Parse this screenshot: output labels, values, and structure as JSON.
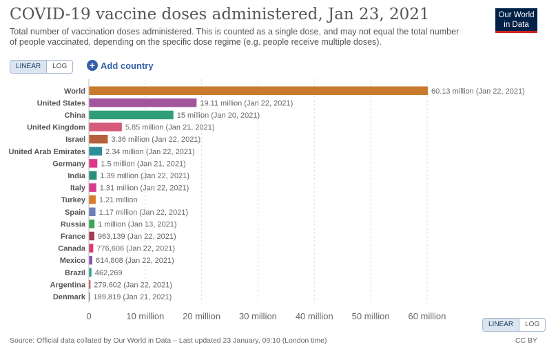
{
  "header": {
    "title": "COVID-19 vaccine doses administered, Jan 23, 2021",
    "subtitle": "Total number of vaccination doses administered. This is counted as a single dose, and may not equal the total number of people vaccinated, depending on the specific dose regime (e.g. people receive multiple doses).",
    "logo": "Our World in Data"
  },
  "controls": {
    "linear_label": "LINEAR",
    "log_label": "LOG",
    "add_country_label": "Add country",
    "active_scale": "linear"
  },
  "footer": {
    "source": "Source: Official data collated by Our World in Data – Last updated 23 January, 09:10 (London time)",
    "license": "CC BY"
  },
  "chart_data": {
    "type": "bar",
    "orientation": "horizontal",
    "xlim": [
      0,
      60130000
    ],
    "grid": true,
    "x_ticks": [
      0,
      10000000,
      20000000,
      30000000,
      40000000,
      50000000,
      60000000
    ],
    "x_tick_labels": [
      "0",
      "10 million",
      "20 million",
      "30 million",
      "40 million",
      "50 million",
      "60 million"
    ],
    "bars": [
      {
        "category": "World",
        "value": 60130000,
        "label": "60.13 million (Jan 22, 2021)",
        "color": "#c97a2c"
      },
      {
        "category": "United States",
        "value": 19110000,
        "label": "19.11 million (Jan 22, 2021)",
        "color": "#a2559c"
      },
      {
        "category": "China",
        "value": 15000000,
        "label": "15 million (Jan 20, 2021)",
        "color": "#2f9e78"
      },
      {
        "category": "United Kingdom",
        "value": 5850000,
        "label": "5.85 million (Jan 21, 2021)",
        "color": "#d65a7a"
      },
      {
        "category": "Israel",
        "value": 3360000,
        "label": "3.36 million (Jan 22, 2021)",
        "color": "#b5623c"
      },
      {
        "category": "United Arab Emirates",
        "value": 2340000,
        "label": "2.34 million (Jan 22, 2021)",
        "color": "#2d8e9a"
      },
      {
        "category": "Germany",
        "value": 1500000,
        "label": "1.5 million (Jan 21, 2021)",
        "color": "#e0378a"
      },
      {
        "category": "India",
        "value": 1390000,
        "label": "1.39 million (Jan 22, 2021)",
        "color": "#2a8c7c"
      },
      {
        "category": "Italy",
        "value": 1310000,
        "label": "1.31 million (Jan 22, 2021)",
        "color": "#d63c8e"
      },
      {
        "category": "Turkey",
        "value": 1210000,
        "label": "1.21 million",
        "color": "#d97b26"
      },
      {
        "category": "Spain",
        "value": 1170000,
        "label": "1.17 million (Jan 22, 2021)",
        "color": "#6a7fba"
      },
      {
        "category": "Russia",
        "value": 1000000,
        "label": "1 million (Jan 13, 2021)",
        "color": "#3aa457"
      },
      {
        "category": "France",
        "value": 963139,
        "label": "963,139 (Jan 22, 2021)",
        "color": "#a63b52"
      },
      {
        "category": "Canada",
        "value": 776606,
        "label": "776,606 (Jan 22, 2021)",
        "color": "#e0357a"
      },
      {
        "category": "Mexico",
        "value": 614808,
        "label": "614,808 (Jan 22, 2021)",
        "color": "#8e55b0"
      },
      {
        "category": "Brazil",
        "value": 462269,
        "label": "462,269",
        "color": "#2f9e9a"
      },
      {
        "category": "Argentina",
        "value": 279602,
        "label": "279,602 (Jan 22, 2021)",
        "color": "#c7423e"
      },
      {
        "category": "Denmark",
        "value": 189819,
        "label": "189,819 (Jan 21, 2021)",
        "color": "#5a6ba8"
      }
    ]
  }
}
